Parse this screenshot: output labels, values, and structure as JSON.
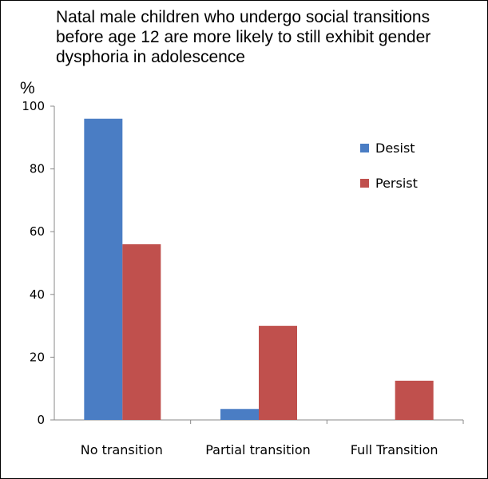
{
  "chart_data": {
    "type": "bar",
    "title": "Natal male children who undergo social transitions before age 12 are more likely to still exhibit gender dysphoria in adolescence",
    "ylabel": "%",
    "xlabel": "",
    "ylim": [
      0,
      100
    ],
    "yticks": [
      0,
      20,
      40,
      60,
      80,
      100
    ],
    "categories": [
      "No transition",
      "Partial transition",
      "Full Transition"
    ],
    "series": [
      {
        "name": "Desist",
        "color": "#4a7dc4",
        "values": [
          96,
          3.5,
          0
        ]
      },
      {
        "name": "Persist",
        "color": "#c0504d",
        "values": [
          56,
          30,
          12.5
        ]
      }
    ],
    "legend_position": "top-right",
    "grid": false
  }
}
